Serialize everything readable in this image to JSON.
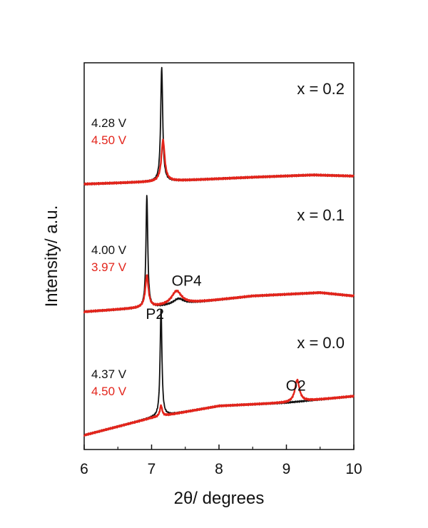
{
  "chart_data": {
    "type": "line",
    "xlabel": "2θ/ degrees",
    "ylabel": "Intensity/ a.u.",
    "xlim": [
      6,
      10
    ],
    "x_ticks": [
      "6",
      "7",
      "8",
      "9",
      "10"
    ],
    "colors": {
      "black_series": "#111111",
      "red_series": "#e3241b"
    },
    "panels": [
      {
        "label": "x = 0.2",
        "voltages": [
          {
            "text": "4.28 V",
            "color": "#111111"
          },
          {
            "text": "4.50 V",
            "color": "#e3241b"
          }
        ],
        "series": [
          {
            "color": "#111111",
            "baseline": [
              [
                6,
                0.0
              ],
              [
                7.0,
                0.02
              ],
              [
                8.5,
                0.06
              ],
              [
                9.4,
                0.08
              ],
              [
                10,
                0.07
              ]
            ],
            "peaks": [
              {
                "x": 7.15,
                "height": 1.0,
                "width": 0.018
              }
            ]
          },
          {
            "color": "#e3241b",
            "baseline": [
              [
                6,
                0.0
              ],
              [
                7.0,
                0.02
              ],
              [
                8.5,
                0.06
              ],
              [
                9.4,
                0.08
              ],
              [
                10,
                0.07
              ]
            ],
            "peaks": [
              {
                "x": 7.17,
                "height": 0.36,
                "width": 0.03
              }
            ]
          }
        ],
        "annotations": []
      },
      {
        "label": "x = 0.1",
        "voltages": [
          {
            "text": "4.00 V",
            "color": "#111111"
          },
          {
            "text": "3.97 V",
            "color": "#e3241b"
          }
        ],
        "series": [
          {
            "color": "#111111",
            "baseline": [
              [
                6,
                0.0
              ],
              [
                7.0,
                0.04
              ],
              [
                8.5,
                0.14
              ],
              [
                9.5,
                0.17
              ],
              [
                10,
                0.14
              ]
            ],
            "peaks": [
              {
                "x": 6.93,
                "height": 1.0,
                "width": 0.016
              },
              {
                "x": 7.4,
                "height": 0.05,
                "width": 0.09
              }
            ]
          },
          {
            "color": "#e3241b",
            "baseline": [
              [
                6,
                0.0
              ],
              [
                7.0,
                0.04
              ],
              [
                8.5,
                0.14
              ],
              [
                9.5,
                0.17
              ],
              [
                10,
                0.14
              ]
            ],
            "peaks": [
              {
                "x": 6.93,
                "height": 0.28,
                "width": 0.028
              },
              {
                "x": 7.37,
                "height": 0.12,
                "width": 0.09
              }
            ]
          }
        ],
        "annotations": [
          {
            "text": "OP4",
            "x": 7.52,
            "height": 0.18
          }
        ]
      },
      {
        "label": "x = 0.0",
        "voltages": [
          {
            "text": "4.37 V",
            "color": "#111111"
          },
          {
            "text": "4.50 V",
            "color": "#e3241b"
          }
        ],
        "series": [
          {
            "color": "#111111",
            "baseline": [
              [
                6,
                0.0
              ],
              [
                7.0,
                0.16
              ],
              [
                8.0,
                0.27
              ],
              [
                9.0,
                0.3
              ],
              [
                10,
                0.36
              ]
            ],
            "peaks": [
              {
                "x": 7.14,
                "height": 1.0,
                "width": 0.016
              }
            ]
          },
          {
            "color": "#e3241b",
            "baseline": [
              [
                6,
                0.0
              ],
              [
                7.0,
                0.16
              ],
              [
                8.0,
                0.27
              ],
              [
                9.0,
                0.3
              ],
              [
                10,
                0.36
              ]
            ],
            "peaks": [
              {
                "x": 7.14,
                "height": 0.1,
                "width": 0.02
              },
              {
                "x": 9.16,
                "height": 0.2,
                "width": 0.04
              }
            ]
          }
        ],
        "annotations": [
          {
            "text": "P2",
            "x": 7.05,
            "height": 1.02
          },
          {
            "text": "O2",
            "x": 9.14,
            "height": 0.36
          }
        ]
      }
    ]
  }
}
